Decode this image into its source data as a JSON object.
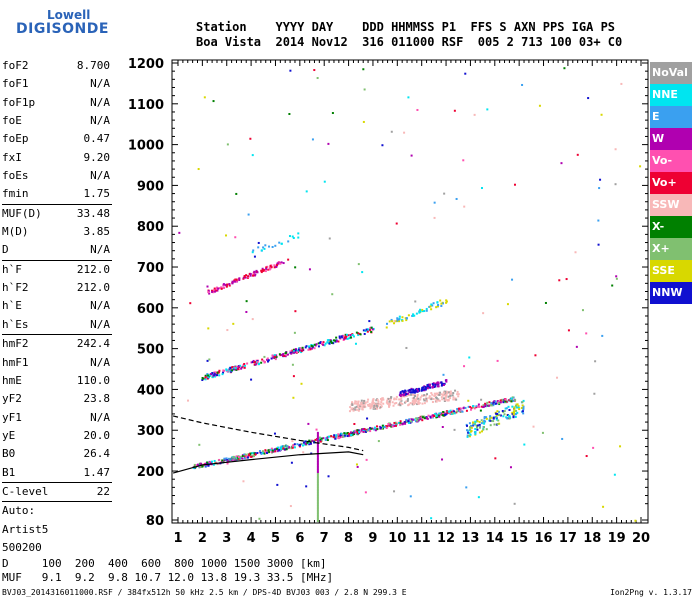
{
  "logo": {
    "line1": "Lowell",
    "line2": "DIGISONDE"
  },
  "header": {
    "row1": "Station    YYYY DAY    DDD HHMMSS P1  FFS S AXN PPS IGA PS",
    "row2": "Boa Vista  2014 Nov12  316 011000 RSF  005 2 713 100 03+ C0"
  },
  "params": [
    {
      "k": "foF2",
      "v": "8.700"
    },
    {
      "k": "foF1",
      "v": "N/A"
    },
    {
      "k": "foF1p",
      "v": "N/A"
    },
    {
      "k": "foE",
      "v": "N/A"
    },
    {
      "k": "foEp",
      "v": "0.47"
    },
    {
      "k": "fxI",
      "v": "9.20"
    },
    {
      "k": "foEs",
      "v": "N/A"
    },
    {
      "k": "fmin",
      "v": "1.75"
    },
    {
      "sep": true
    },
    {
      "k": "MUF(D)",
      "v": "33.48"
    },
    {
      "k": "M(D)",
      "v": "3.85"
    },
    {
      "k": "D",
      "v": "N/A"
    },
    {
      "sep": true
    },
    {
      "k": "h`F",
      "v": "212.0"
    },
    {
      "k": "h`F2",
      "v": "212.0"
    },
    {
      "k": "h`E",
      "v": "N/A"
    },
    {
      "k": "h`Es",
      "v": "N/A"
    },
    {
      "sep": true
    },
    {
      "k": "hmF2",
      "v": "242.4"
    },
    {
      "k": "hmF1",
      "v": "N/A"
    },
    {
      "k": "hmE",
      "v": "110.0"
    },
    {
      "k": "yF2",
      "v": "23.8"
    },
    {
      "k": "yF1",
      "v": "N/A"
    },
    {
      "k": "yE",
      "v": "20.0"
    },
    {
      "k": "B0",
      "v": "26.4"
    },
    {
      "k": "B1",
      "v": "1.47"
    },
    {
      "sep": true
    },
    {
      "k": "C-level",
      "v": "22"
    },
    {
      "sep": true
    },
    {
      "k": "Auto:",
      "v": ""
    },
    {
      "k": "Artist5",
      "v": ""
    },
    {
      "k": "500200",
      "v": ""
    }
  ],
  "legend": [
    {
      "label": "NoVal",
      "color": "#a0a0a0"
    },
    {
      "label": "NNE",
      "color": "#00e5f0"
    },
    {
      "label": "E",
      "color": "#3aa0f0"
    },
    {
      "label": "W",
      "color": "#b000b0"
    },
    {
      "label": "Vo-",
      "color": "#ff50b0"
    },
    {
      "label": "Vo+",
      "color": "#ee0033"
    },
    {
      "label": "SSW",
      "color": "#f8b8b8"
    },
    {
      "label": "X-",
      "color": "#008000"
    },
    {
      "label": "X+",
      "color": "#80c070"
    },
    {
      "label": "SSE",
      "color": "#d8d800"
    },
    {
      "label": "NNW",
      "color": "#1010d0"
    }
  ],
  "axes": {
    "x_ticks": [
      "1",
      "2",
      "3",
      "4",
      "5",
      "6",
      "7",
      "8",
      "9",
      "10",
      "11",
      "12",
      "13",
      "14",
      "15",
      "16",
      "17",
      "18",
      "19",
      "20"
    ],
    "y_ticks": [
      "80",
      "200",
      "300",
      "400",
      "500",
      "600",
      "700",
      "800",
      "900",
      "1000",
      "1100",
      "1200"
    ]
  },
  "footer": {
    "d_row": "D     100  200  400  600  800 1000 1500 3000 [km]",
    "muf_row": "MUF   9.1  9.2  9.8 10.7 12.0 13.8 19.3 33.5 [MHz]",
    "file_line": "BVJ03_2014316011000.RSF / 384fx512h 50 kHz 2.5 km / DPS-4D BVJ03 003 / 2.8 N 299.3 E",
    "version": "Ion2Png v. 1.3.17"
  }
}
